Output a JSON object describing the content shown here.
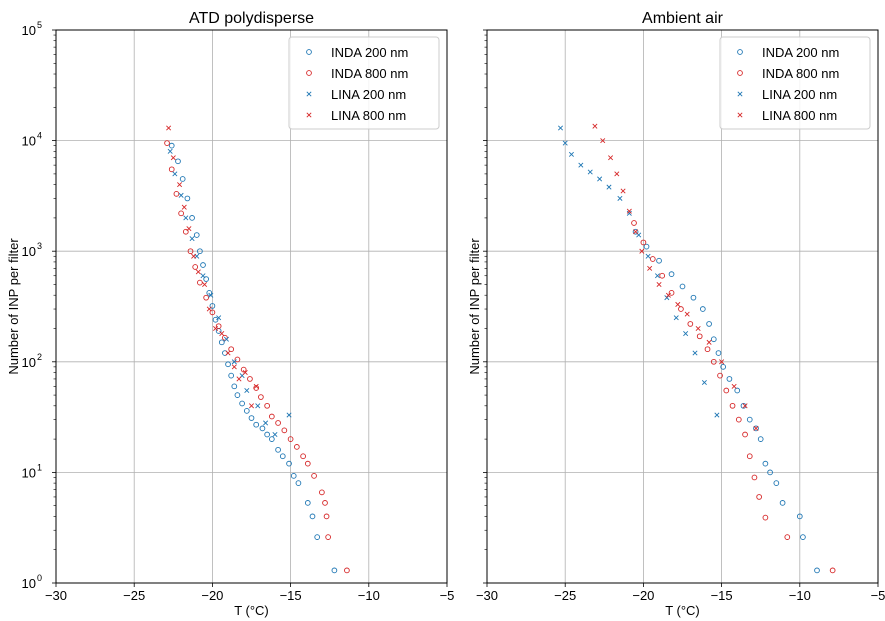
{
  "chart_data": [
    {
      "type": "scatter",
      "title": "ATD polydisperse",
      "xlabel": "T (°C)",
      "ylabel": "Number of INP per filter",
      "xlim": [
        -30,
        -5
      ],
      "ylim": [
        1,
        100000
      ],
      "yscale": "log",
      "grid": true,
      "legend_position": "top-right",
      "x_ticks": [
        "−30",
        "−25",
        "−20",
        "−15",
        "−10",
        "−5"
      ],
      "y_ticks": [
        "10",
        "10",
        "10",
        "10",
        "10",
        "10"
      ],
      "y_tick_exps": [
        "0",
        "1",
        "2",
        "3",
        "4",
        "5"
      ],
      "series": [
        {
          "name": "INDA 200 nm",
          "marker": "circle",
          "color": "#1f77b4",
          "points": [
            [
              -12.2,
              1.3
            ],
            [
              -13.3,
              2.6
            ],
            [
              -13.6,
              4
            ],
            [
              -13.9,
              5.3
            ],
            [
              -14.5,
              8
            ],
            [
              -14.8,
              9.3
            ],
            [
              -15.1,
              12
            ],
            [
              -15.5,
              14
            ],
            [
              -15.8,
              16
            ],
            [
              -16.2,
              20
            ],
            [
              -16.5,
              22
            ],
            [
              -16.8,
              25
            ],
            [
              -17.2,
              27
            ],
            [
              -17.5,
              31
            ],
            [
              -17.8,
              36
            ],
            [
              -18.1,
              42
            ],
            [
              -18.4,
              50
            ],
            [
              -18.6,
              60
            ],
            [
              -18.8,
              75
            ],
            [
              -19.0,
              95
            ],
            [
              -19.2,
              120
            ],
            [
              -19.4,
              150
            ],
            [
              -19.6,
              190
            ],
            [
              -19.8,
              240
            ],
            [
              -20.0,
              320
            ],
            [
              -20.2,
              420
            ],
            [
              -20.4,
              560
            ],
            [
              -20.6,
              750
            ],
            [
              -20.8,
              1000
            ],
            [
              -21.0,
              1400
            ],
            [
              -21.3,
              2000
            ],
            [
              -21.6,
              3000
            ],
            [
              -21.9,
              4500
            ],
            [
              -22.2,
              6500
            ],
            [
              -22.6,
              9000
            ]
          ]
        },
        {
          "name": "INDA 800 nm",
          "marker": "circle",
          "color": "#d62728",
          "points": [
            [
              -11.4,
              1.3
            ],
            [
              -12.6,
              2.6
            ],
            [
              -12.7,
              4
            ],
            [
              -12.8,
              5.3
            ],
            [
              -13.0,
              6.6
            ],
            [
              -13.5,
              9.3
            ],
            [
              -13.9,
              12
            ],
            [
              -14.2,
              14
            ],
            [
              -14.6,
              17
            ],
            [
              -15.0,
              20
            ],
            [
              -15.4,
              24
            ],
            [
              -15.8,
              28
            ],
            [
              -16.2,
              32
            ],
            [
              -16.5,
              40
            ],
            [
              -16.9,
              48
            ],
            [
              -17.2,
              58
            ],
            [
              -17.6,
              70
            ],
            [
              -18.0,
              85
            ],
            [
              -18.4,
              105
            ],
            [
              -18.8,
              130
            ],
            [
              -19.2,
              165
            ],
            [
              -19.6,
              210
            ],
            [
              -20.0,
              280
            ],
            [
              -20.4,
              380
            ],
            [
              -20.8,
              520
            ],
            [
              -21.1,
              720
            ],
            [
              -21.4,
              1000
            ],
            [
              -21.7,
              1500
            ],
            [
              -22.0,
              2200
            ],
            [
              -22.3,
              3300
            ],
            [
              -22.6,
              5500
            ],
            [
              -22.9,
              9500
            ]
          ]
        },
        {
          "name": "LINA 200 nm",
          "marker": "x",
          "color": "#1f77b4",
          "points": [
            [
              -15.1,
              33
            ],
            [
              -16.0,
              22
            ],
            [
              -16.6,
              28
            ],
            [
              -17.1,
              40
            ],
            [
              -17.8,
              55
            ],
            [
              -18.1,
              75
            ],
            [
              -18.6,
              100
            ],
            [
              -19.1,
              160
            ],
            [
              -19.6,
              250
            ],
            [
              -20.1,
              400
            ],
            [
              -20.6,
              600
            ],
            [
              -21.0,
              900
            ],
            [
              -21.3,
              1300
            ],
            [
              -21.7,
              2000
            ],
            [
              -22.0,
              3200
            ],
            [
              -22.4,
              5000
            ],
            [
              -22.7,
              8000
            ]
          ]
        },
        {
          "name": "LINA 800 nm",
          "marker": "x",
          "color": "#d62728",
          "points": [
            [
              -17.2,
              60
            ],
            [
              -17.5,
              40
            ],
            [
              -17.9,
              80
            ],
            [
              -18.3,
              70
            ],
            [
              -18.6,
              90
            ],
            [
              -19.0,
              120
            ],
            [
              -19.4,
              180
            ],
            [
              -19.8,
              200
            ],
            [
              -20.2,
              300
            ],
            [
              -20.5,
              500
            ],
            [
              -20.9,
              650
            ],
            [
              -21.2,
              900
            ],
            [
              -21.5,
              1600
            ],
            [
              -21.8,
              2500
            ],
            [
              -22.1,
              4000
            ],
            [
              -22.5,
              7000
            ],
            [
              -22.8,
              13000
            ]
          ]
        }
      ]
    },
    {
      "type": "scatter",
      "title": "Ambient air",
      "xlabel": "T (°C)",
      "ylabel": "Number of INP per filter",
      "xlim": [
        -30,
        -5
      ],
      "ylim": [
        1,
        100000
      ],
      "yscale": "log",
      "grid": true,
      "legend_position": "top-right",
      "x_ticks": [
        "−30",
        "−25",
        "−20",
        "−15",
        "−10",
        "−5"
      ],
      "y_ticks": [],
      "y_tick_exps": [],
      "series": [
        {
          "name": "INDA 200 nm",
          "marker": "circle",
          "color": "#1f77b4",
          "points": [
            [
              -8.9,
              1.3
            ],
            [
              -9.8,
              2.6
            ],
            [
              -10.0,
              4
            ],
            [
              -11.1,
              5.3
            ],
            [
              -11.5,
              8
            ],
            [
              -11.9,
              10
            ],
            [
              -12.2,
              12
            ],
            [
              -12.5,
              20
            ],
            [
              -12.8,
              25
            ],
            [
              -13.2,
              30
            ],
            [
              -13.6,
              40
            ],
            [
              -14.0,
              55
            ],
            [
              -14.5,
              70
            ],
            [
              -14.9,
              90
            ],
            [
              -15.2,
              120
            ],
            [
              -15.5,
              160
            ],
            [
              -15.8,
              220
            ],
            [
              -16.2,
              300
            ],
            [
              -16.8,
              380
            ],
            [
              -17.5,
              480
            ],
            [
              -18.2,
              620
            ],
            [
              -19.0,
              820
            ],
            [
              -19.8,
              1100
            ],
            [
              -20.5,
              1500
            ]
          ]
        },
        {
          "name": "INDA 800 nm",
          "marker": "circle",
          "color": "#d62728",
          "points": [
            [
              -7.9,
              1.3
            ],
            [
              -10.8,
              2.6
            ],
            [
              -12.2,
              3.9
            ],
            [
              -12.6,
              6
            ],
            [
              -12.9,
              9
            ],
            [
              -13.2,
              14
            ],
            [
              -13.5,
              22
            ],
            [
              -13.9,
              30
            ],
            [
              -14.3,
              40
            ],
            [
              -14.7,
              55
            ],
            [
              -15.1,
              75
            ],
            [
              -15.5,
              100
            ],
            [
              -15.9,
              130
            ],
            [
              -16.4,
              170
            ],
            [
              -17.0,
              220
            ],
            [
              -17.6,
              300
            ],
            [
              -18.2,
              420
            ],
            [
              -18.8,
              600
            ],
            [
              -19.4,
              850
            ],
            [
              -20.0,
              1200
            ],
            [
              -20.6,
              1800
            ]
          ]
        },
        {
          "name": "LINA 200 nm",
          "marker": "x",
          "color": "#1f77b4",
          "points": [
            [
              -15.3,
              33
            ],
            [
              -16.1,
              65
            ],
            [
              -16.7,
              120
            ],
            [
              -17.3,
              180
            ],
            [
              -17.9,
              250
            ],
            [
              -18.5,
              380
            ],
            [
              -19.1,
              600
            ],
            [
              -19.7,
              900
            ],
            [
              -20.3,
              1400
            ],
            [
              -20.9,
              2200
            ],
            [
              -21.5,
              3000
            ],
            [
              -22.2,
              3800
            ],
            [
              -22.8,
              4500
            ],
            [
              -23.4,
              5200
            ],
            [
              -24.0,
              6000
            ],
            [
              -24.6,
              7500
            ],
            [
              -25.0,
              9500
            ],
            [
              -25.3,
              13000
            ]
          ]
        },
        {
          "name": "LINA 800 nm",
          "marker": "x",
          "color": "#d62728",
          "points": [
            [
              -12.8,
              25
            ],
            [
              -13.5,
              40
            ],
            [
              -14.2,
              60
            ],
            [
              -15.0,
              100
            ],
            [
              -15.8,
              150
            ],
            [
              -16.5,
              200
            ],
            [
              -17.2,
              270
            ],
            [
              -17.8,
              330
            ],
            [
              -18.4,
              400
            ],
            [
              -19.0,
              500
            ],
            [
              -19.6,
              700
            ],
            [
              -20.1,
              1000
            ],
            [
              -20.5,
              1500
            ],
            [
              -20.9,
              2300
            ],
            [
              -21.3,
              3500
            ],
            [
              -21.7,
              5000
            ],
            [
              -22.1,
              7000
            ],
            [
              -22.6,
              10000
            ],
            [
              -23.1,
              13500
            ]
          ]
        }
      ]
    }
  ]
}
